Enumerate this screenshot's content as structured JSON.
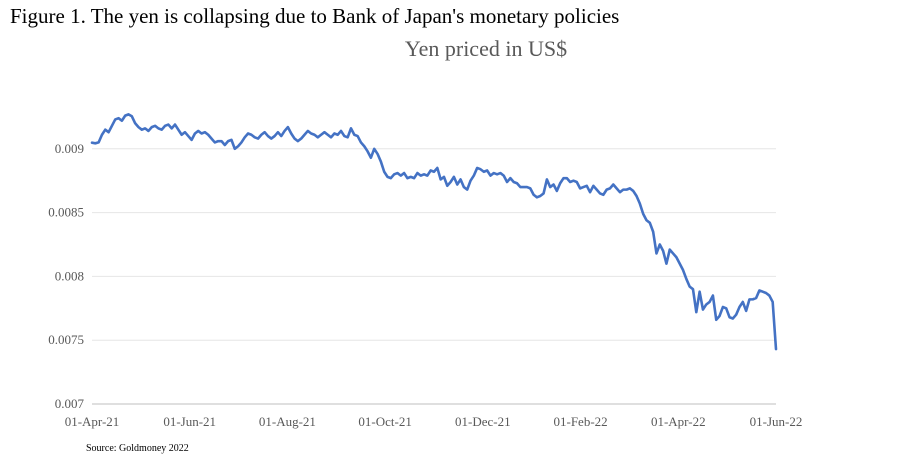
{
  "figure_title": "Figure 1. The yen is collapsing due to Bank of Japan's monetary policies",
  "source": "Source: Goldmoney 2022",
  "chart_data": {
    "type": "line",
    "title": "Yen priced in US$",
    "xlabel": "",
    "ylabel": "",
    "ylim": [
      0.007,
      0.0095
    ],
    "yticks": [
      "0.007",
      "0.0075",
      "0.008",
      "0.0085",
      "0.009"
    ],
    "xticks": [
      "01-Apr-21",
      "01-Jun-21",
      "01-Aug-21",
      "01-Oct-21",
      "01-Dec-21",
      "01-Feb-22",
      "01-Apr-22",
      "01-Jun-22"
    ],
    "grid": "horizontal",
    "line_color": "#4472C4",
    "series": [
      {
        "x_start": "01-Apr-21",
        "x_end": "01-Jun-22",
        "values": [
          0.009048,
          0.009043,
          0.00905,
          0.00911,
          0.00915,
          0.00913,
          0.00918,
          0.00923,
          0.00924,
          0.00922,
          0.00926,
          0.00927,
          0.009255,
          0.0092,
          0.00917,
          0.00915,
          0.00916,
          0.00914,
          0.00917,
          0.00918,
          0.00916,
          0.00915,
          0.00918,
          0.00919,
          0.00916,
          0.00919,
          0.00915,
          0.00911,
          0.00913,
          0.0091,
          0.00907,
          0.00912,
          0.00914,
          0.00912,
          0.00913,
          0.00911,
          0.00908,
          0.00905,
          0.00906,
          0.00906,
          0.00903,
          0.00906,
          0.00907,
          0.009,
          0.00902,
          0.00905,
          0.00909,
          0.00912,
          0.00911,
          0.00909,
          0.00908,
          0.00911,
          0.00913,
          0.0091,
          0.00908,
          0.0091,
          0.00913,
          0.0091,
          0.00914,
          0.00917,
          0.00912,
          0.00908,
          0.00906,
          0.00908,
          0.00911,
          0.00914,
          0.00912,
          0.00911,
          0.00909,
          0.00911,
          0.00913,
          0.00911,
          0.00909,
          0.00912,
          0.00911,
          0.00914,
          0.0091,
          0.00909,
          0.00916,
          0.00911,
          0.0091,
          0.00905,
          0.00902,
          0.00898,
          0.00893,
          0.009,
          0.00896,
          0.0089,
          0.00882,
          0.00878,
          0.00877,
          0.0088,
          0.00881,
          0.00879,
          0.00881,
          0.00877,
          0.00878,
          0.00877,
          0.00881,
          0.00879,
          0.0088,
          0.00879,
          0.00883,
          0.00882,
          0.00885,
          0.00876,
          0.00878,
          0.00871,
          0.00874,
          0.00878,
          0.00872,
          0.00876,
          0.0087,
          0.00868,
          0.00875,
          0.00879,
          0.00885,
          0.00884,
          0.00882,
          0.00883,
          0.00879,
          0.00881,
          0.0088,
          0.00881,
          0.00879,
          0.00874,
          0.00877,
          0.00874,
          0.00873,
          0.0087,
          0.0087,
          0.0087,
          0.00869,
          0.00864,
          0.00862,
          0.00863,
          0.00865,
          0.00876,
          0.0087,
          0.00872,
          0.00867,
          0.00873,
          0.00877,
          0.00877,
          0.00874,
          0.00875,
          0.00874,
          0.00869,
          0.0087,
          0.00871,
          0.00866,
          0.00871,
          0.00868,
          0.00865,
          0.00864,
          0.00868,
          0.00869,
          0.00872,
          0.00869,
          0.00866,
          0.00868,
          0.00868,
          0.00869,
          0.00867,
          0.00863,
          0.00857,
          0.00849,
          0.00844,
          0.00842,
          0.00835,
          0.00818,
          0.00825,
          0.0082,
          0.0081,
          0.00821,
          0.00818,
          0.00815,
          0.0081,
          0.00805,
          0.00798,
          0.00792,
          0.0079,
          0.00772,
          0.00788,
          0.00774,
          0.00778,
          0.0078,
          0.00785,
          0.00766,
          0.00769,
          0.00776,
          0.00775,
          0.00768,
          0.00767,
          0.0077,
          0.00776,
          0.0078,
          0.00773,
          0.00782,
          0.00782,
          0.00783,
          0.00789,
          0.00788,
          0.00787,
          0.00785,
          0.0078,
          0.00743
        ]
      }
    ]
  }
}
